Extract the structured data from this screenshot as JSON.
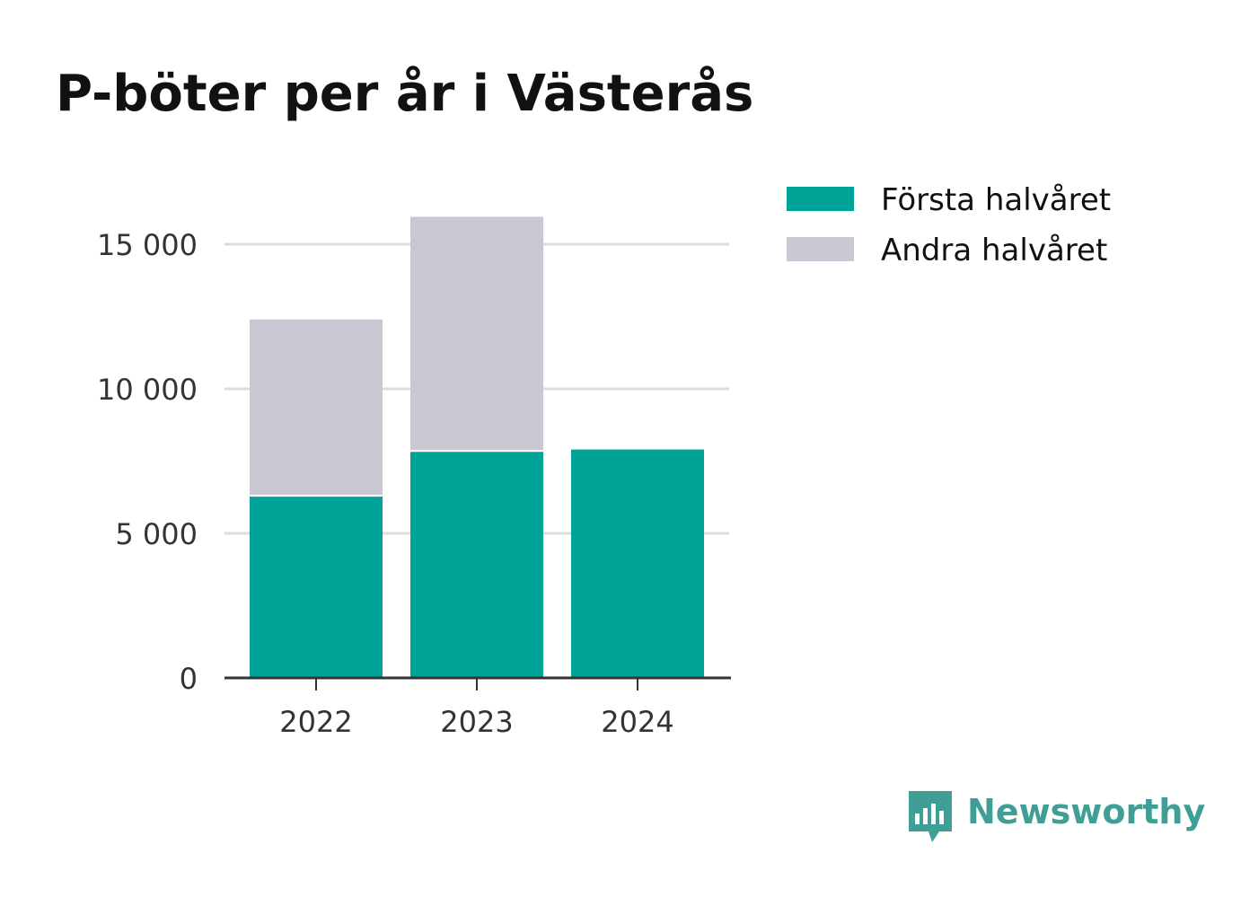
{
  "chart_data": {
    "type": "bar",
    "stacked": true,
    "title": "P-böter per år i Västerås",
    "xlabel": "",
    "ylabel": "",
    "categories": [
      "2022",
      "2023",
      "2024"
    ],
    "series": [
      {
        "name": "Första halvåret",
        "color": "#00a398",
        "values": [
          6300,
          7850,
          7900
        ]
      },
      {
        "name": "Andra halvåret",
        "color": "#c8c7d2",
        "values": [
          6100,
          8100,
          0
        ]
      }
    ],
    "ylim": [
      0,
      16000
    ],
    "yticks": [
      0,
      5000,
      10000,
      15000
    ],
    "ytick_labels": [
      "0",
      "5 000",
      "10 000",
      "15 000"
    ],
    "grid": true,
    "legend_position": "top-right"
  },
  "brand": {
    "name": "Newsworthy",
    "icon": "bar-chart-speech-bubble-icon",
    "color": "#3f9e96"
  }
}
